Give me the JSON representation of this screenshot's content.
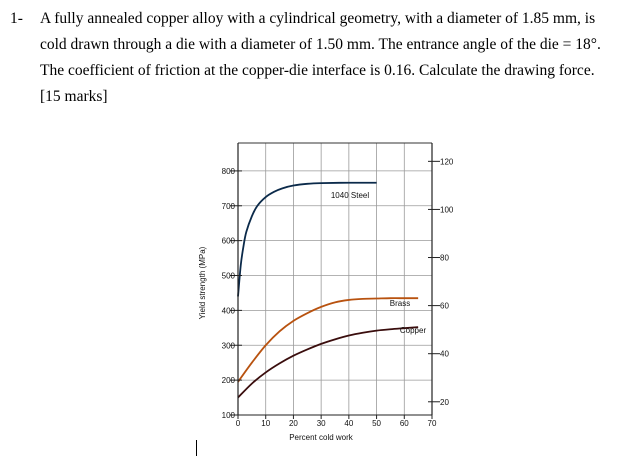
{
  "question": {
    "number": "1-",
    "lines": [
      "A fully annealed copper alloy with a cylindrical geometry, with a diameter of 1.85 mm, is",
      "cold drawn through a die with a diameter of  1.50 mm.  The entrance angle of the die = 18°.",
      "The coefficient of friction at the copper-die interface is 0.16.  Calculate the drawing force.",
      "[15 marks]"
    ]
  },
  "chart_data": {
    "type": "line",
    "xlabel": "Percent cold work",
    "ylabel": "Yield strength (MPa)",
    "xlim": [
      0,
      70
    ],
    "ylim": [
      100,
      880
    ],
    "x_ticks": [
      0,
      10,
      20,
      30,
      40,
      50,
      60,
      70
    ],
    "y_ticks": [
      100,
      200,
      300,
      400,
      500,
      600,
      700,
      800
    ],
    "y2_ticks": [
      20,
      40,
      60,
      80,
      100,
      120
    ],
    "y2_ratio_mpa_per_unit": 6.895,
    "grid": true,
    "series": [
      {
        "name": "1040 Steel",
        "color": "#0b2a4a",
        "x": [
          0,
          1,
          2,
          3,
          5,
          7,
          10,
          13,
          16,
          20,
          25,
          30,
          40,
          50
        ],
        "y": [
          440,
          530,
          585,
          625,
          670,
          700,
          725,
          740,
          750,
          758,
          763,
          765,
          766,
          766
        ]
      },
      {
        "name": "Brass",
        "color": "#b8520f",
        "x": [
          0,
          5,
          10,
          15,
          20,
          25,
          30,
          35,
          40,
          45,
          50,
          55,
          60,
          65
        ],
        "y": [
          195,
          250,
          300,
          340,
          370,
          392,
          410,
          423,
          430,
          433,
          434,
          435,
          435,
          435
        ]
      },
      {
        "name": "Copper",
        "color": "#3a0d0d",
        "x": [
          0,
          5,
          10,
          15,
          20,
          25,
          30,
          35,
          40,
          45,
          50,
          55,
          60,
          65
        ],
        "y": [
          150,
          190,
          222,
          248,
          270,
          288,
          304,
          317,
          328,
          336,
          342,
          346,
          349,
          352
        ]
      }
    ]
  }
}
